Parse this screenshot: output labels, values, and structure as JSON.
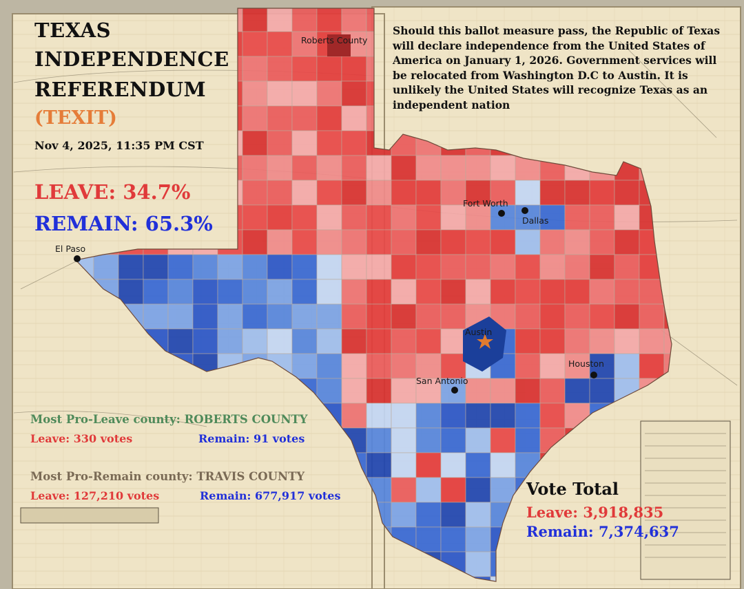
{
  "title": {
    "line1": "TEXAS",
    "line2": "INDEPENDENCE",
    "line3": "REFERENDUM",
    "subtitle": "(TEXIT)",
    "timestamp": "Nov 4, 2025, 11:35 PM CST"
  },
  "results": {
    "leave": "LEAVE: 34.7%",
    "remain": "REMAIN: 65.3%",
    "leave_pct": 34.7,
    "remain_pct": 65.3
  },
  "description": "Should this ballot measure pass, the Republic of Texas will declare independence from the United States of America on January 1, 2026. Government services will be relocated from Washington D.C to Austin. It is unlikely the United States will recognize Texas as an independent nation",
  "pro_leave": {
    "heading": "Most Pro-Leave county: ROBERTS COUNTY",
    "leave": "Leave: 330 votes",
    "remain": "Remain: 91 votes"
  },
  "pro_remain": {
    "heading": "Most Pro-Remain county: TRAVIS COUNTY",
    "leave": "Leave: 127,210 votes",
    "remain": "Remain: 677,917 votes"
  },
  "vote_total": {
    "heading": "Vote Total",
    "leave": "Leave: 3,918,835",
    "remain": "Remain: 7,374,637"
  },
  "cities": {
    "roberts": "Roberts County",
    "fort_worth": "Fort Worth",
    "dallas": "Dallas",
    "el_paso": "El Paso",
    "austin": "Austin",
    "houston": "Houston",
    "san_antonio": "San Antonio"
  },
  "colors": {
    "leave": "#e03a3a",
    "remain": "#2130d9",
    "subtitle": "#e57c38",
    "pro_leave_heading": "#4f8a5a",
    "pro_remain_heading": "#7a6a55",
    "dark_red": "#a02828",
    "dark_blue": "#1b3f9a",
    "capital_star": "#e07b30"
  }
}
